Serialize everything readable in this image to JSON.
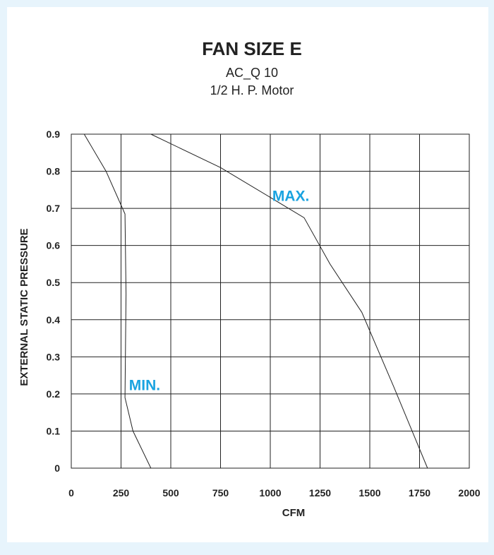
{
  "chart_data": {
    "type": "line",
    "title": "FAN SIZE E",
    "subtitle_lines": [
      "AC_Q 10",
      "1/2 H. P. Motor"
    ],
    "xlabel": "CFM",
    "ylabel": "EXTERNAL STATIC PRESSURE",
    "xlim": [
      0,
      2000
    ],
    "ylim": [
      0,
      0.9
    ],
    "x_ticks": [
      0,
      250,
      500,
      750,
      1000,
      1250,
      1500,
      1750,
      2000
    ],
    "x_tick_labels": [
      "0",
      "250",
      "500",
      "750",
      "1000",
      "1250",
      "1500",
      "1750",
      "2000"
    ],
    "y_ticks": [
      0,
      0.1,
      0.2,
      0.3,
      0.4,
      0.5,
      0.6,
      0.7,
      0.8,
      0.9
    ],
    "y_tick_labels": [
      "0",
      "0.1",
      "0.2",
      "0.3",
      "0.4",
      "0.5",
      "0.6",
      "0.7",
      "0.8",
      "0.9"
    ],
    "grid": true,
    "annotation_color": "#1aa3e0",
    "series": [
      {
        "label": "MAX.",
        "points": [
          [
            400,
            0.9
          ],
          [
            750,
            0.81
          ],
          [
            1170,
            0.675
          ],
          [
            1300,
            0.55
          ],
          [
            1460,
            0.42
          ],
          [
            1620,
            0.22
          ],
          [
            1790,
            0.0
          ]
        ],
        "annotation": {
          "text": "MAX.",
          "x": 1010,
          "y": 0.72
        }
      },
      {
        "label": "MIN.",
        "points": [
          [
            65,
            0.9
          ],
          [
            175,
            0.8
          ],
          [
            270,
            0.685
          ],
          [
            275,
            0.47
          ],
          [
            270,
            0.19
          ],
          [
            310,
            0.1
          ],
          [
            400,
            0.0
          ]
        ],
        "annotation": {
          "text": "MIN.",
          "x": 290,
          "y": 0.21
        }
      }
    ]
  }
}
